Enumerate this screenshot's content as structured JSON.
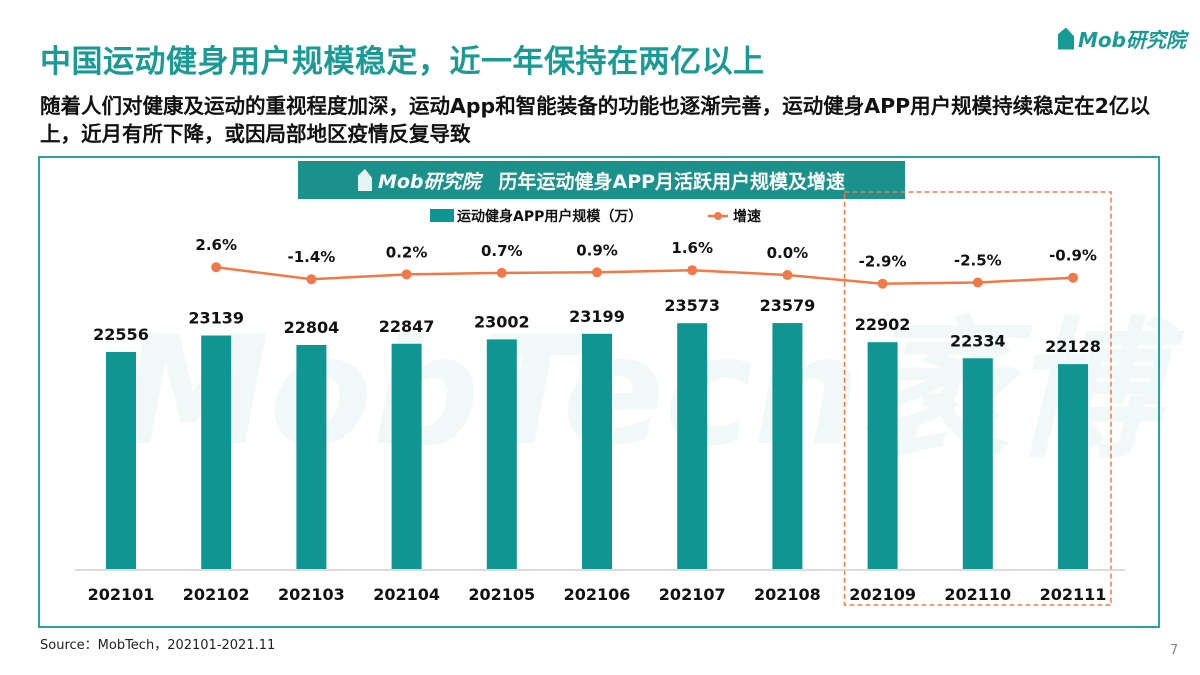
{
  "header": {
    "title": "中国运动健身用户规模稳定，近一年保持在两亿以上",
    "subtitle": "随着人们对健康及运动的重视程度加深，运动App和智能装备的功能也逐渐完善，运动健身APP用户规模持续稳定在2亿以上，近月有所下降，或因局部地区疫情反复导致",
    "logo_text": "Mob研究院"
  },
  "watermark_text": "MobTech袤博",
  "chart_data": {
    "type": "bar",
    "title": "历年运动健身APP月活跃用户规模及增速",
    "title_logo": "Mob研究院",
    "categories": [
      "202101",
      "202102",
      "202103",
      "202104",
      "202105",
      "202106",
      "202107",
      "202108",
      "202109",
      "202110",
      "202111"
    ],
    "series": [
      {
        "name": "运动健身APP用户规模（万）",
        "type": "bar",
        "color": "#0f9693",
        "values": [
          22556,
          23139,
          22804,
          22847,
          23002,
          23199,
          23573,
          23579,
          22902,
          22334,
          22128
        ],
        "labels": [
          "22556",
          "23139",
          "22804",
          "22847",
          "23002",
          "23199",
          "23573",
          "23579",
          "22902",
          "22334",
          "22128"
        ]
      },
      {
        "name": "增速",
        "type": "line",
        "color": "#f07a47",
        "values": [
          null,
          2.6,
          -1.4,
          0.2,
          0.7,
          0.9,
          1.6,
          0.0,
          -2.9,
          -2.5,
          -0.9
        ],
        "labels": [
          "",
          "2.6%",
          "-1.4%",
          "0.2%",
          "0.7%",
          "0.9%",
          "1.6%",
          "0.0%",
          "-2.9%",
          "-2.5%",
          "-0.9%"
        ]
      }
    ],
    "legend_position": "top",
    "grid": false,
    "highlight_categories": [
      "202109",
      "202110",
      "202111"
    ],
    "highlight_color": "#f07a47"
  },
  "footer": {
    "source": "Source：MobTech，202101-2021.11",
    "page": "7"
  }
}
